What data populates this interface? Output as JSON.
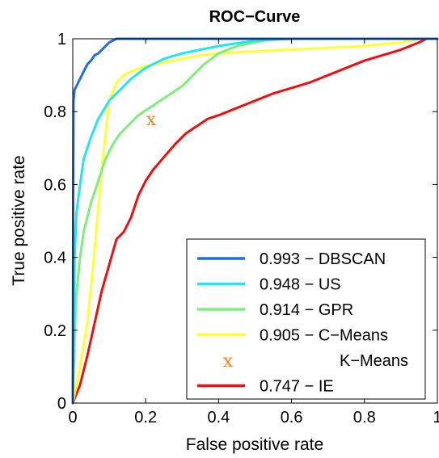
{
  "chart_data": {
    "type": "line",
    "title": "ROC−Curve",
    "xlabel": "False positive rate",
    "ylabel": "True positive rate",
    "xlim": [
      0,
      1
    ],
    "ylim": [
      0,
      1
    ],
    "xticks": [
      0,
      0.2,
      0.4,
      0.6,
      0.8,
      1
    ],
    "yticks": [
      0,
      0.2,
      0.4,
      0.6,
      0.8,
      1
    ],
    "xtick_labels": [
      "0",
      "0.2",
      "0.4",
      "0.6",
      "0.8",
      "1"
    ],
    "ytick_labels": [
      "0",
      "0.2",
      "0.4",
      "0.6",
      "0.8",
      "1"
    ],
    "grid": false,
    "legend_position": "bottom-right",
    "series": [
      {
        "name": "0.993 − DBSCAN",
        "color": "#1f6fe0",
        "x": [
          0,
          0.002,
          0.005,
          0.01,
          0.02,
          0.03,
          0.04,
          0.05,
          0.06,
          0.07,
          0.08,
          0.09,
          0.1,
          0.12,
          0.15,
          0.2,
          0.3,
          0.5,
          0.7,
          1.0
        ],
        "y": [
          0,
          0.83,
          0.86,
          0.87,
          0.89,
          0.91,
          0.93,
          0.94,
          0.955,
          0.96,
          0.97,
          0.98,
          0.99,
          1.0,
          1.0,
          1.0,
          1.0,
          1.0,
          1.0,
          1.0
        ]
      },
      {
        "name": "0.948 − US",
        "color": "#22e4f2",
        "x": [
          0,
          0.005,
          0.01,
          0.02,
          0.03,
          0.05,
          0.07,
          0.1,
          0.13,
          0.16,
          0.2,
          0.25,
          0.3,
          0.35,
          0.4,
          0.5,
          0.6,
          0.8,
          1.0
        ],
        "y": [
          0,
          0.4,
          0.52,
          0.6,
          0.67,
          0.73,
          0.78,
          0.83,
          0.86,
          0.89,
          0.92,
          0.945,
          0.96,
          0.97,
          0.98,
          0.995,
          1.0,
          1.0,
          1.0
        ]
      },
      {
        "name": "0.914 − GPR",
        "color": "#7ded7d",
        "x": [
          0,
          0.005,
          0.01,
          0.02,
          0.03,
          0.05,
          0.07,
          0.09,
          0.11,
          0.13,
          0.15,
          0.18,
          0.21,
          0.24,
          0.27,
          0.3,
          0.33,
          0.36,
          0.4,
          0.45,
          0.5,
          0.55,
          0.6,
          0.8,
          1.0
        ],
        "y": [
          0,
          0.18,
          0.3,
          0.4,
          0.47,
          0.55,
          0.61,
          0.67,
          0.71,
          0.74,
          0.76,
          0.79,
          0.81,
          0.83,
          0.85,
          0.87,
          0.9,
          0.93,
          0.96,
          0.98,
          0.99,
          1.0,
          1.0,
          1.0,
          1.0
        ]
      },
      {
        "name": "0.905 − C−Means",
        "color": "#ffff33",
        "x": [
          0,
          0.02,
          0.04,
          0.06,
          0.08,
          0.1,
          0.12,
          0.14,
          0.16,
          0.2,
          0.25,
          0.3,
          0.35,
          0.4,
          0.5,
          0.6,
          0.7,
          0.8,
          0.9,
          0.95,
          1.0
        ],
        "y": [
          0,
          0.1,
          0.22,
          0.42,
          0.65,
          0.83,
          0.88,
          0.9,
          0.91,
          0.925,
          0.935,
          0.945,
          0.955,
          0.96,
          0.965,
          0.97,
          0.975,
          0.98,
          0.99,
          1.0,
          1.0
        ]
      },
      {
        "name": "0.747 − IE",
        "color": "#ee1010",
        "x": [
          0,
          0.02,
          0.04,
          0.06,
          0.08,
          0.1,
          0.12,
          0.14,
          0.16,
          0.18,
          0.2,
          0.22,
          0.25,
          0.28,
          0.31,
          0.34,
          0.37,
          0.4,
          0.45,
          0.5,
          0.55,
          0.6,
          0.65,
          0.7,
          0.75,
          0.8,
          0.85,
          0.9,
          0.95,
          0.97,
          1.0
        ],
        "y": [
          0,
          0.05,
          0.13,
          0.22,
          0.31,
          0.38,
          0.45,
          0.47,
          0.51,
          0.57,
          0.61,
          0.64,
          0.675,
          0.71,
          0.74,
          0.76,
          0.78,
          0.79,
          0.81,
          0.83,
          0.85,
          0.865,
          0.88,
          0.9,
          0.92,
          0.94,
          0.955,
          0.97,
          0.99,
          1.0,
          1.0
        ]
      }
    ],
    "points": [
      {
        "name": "K−Means",
        "marker": "x",
        "color": "#ff7f1a",
        "x": 0.215,
        "y": 0.78
      }
    ]
  }
}
